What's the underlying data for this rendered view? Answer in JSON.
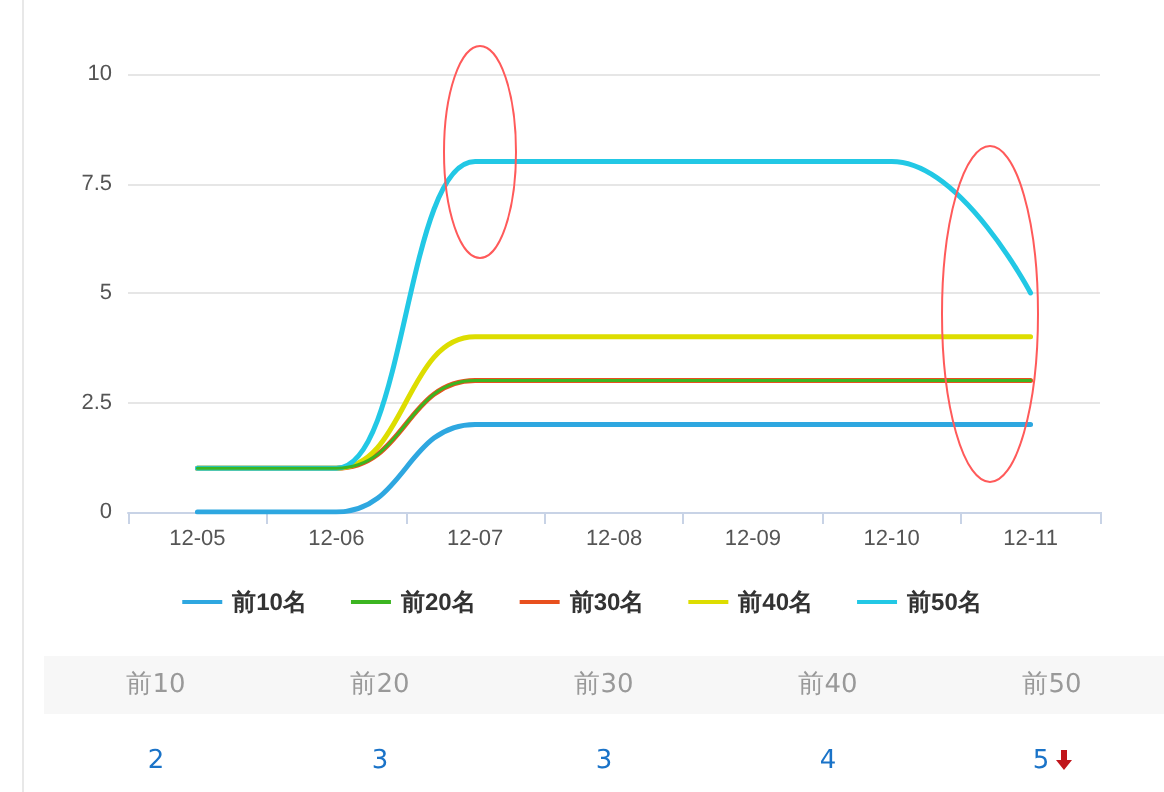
{
  "chart_data": {
    "type": "line",
    "categories": [
      "12-05",
      "12-06",
      "12-07",
      "12-08",
      "12-09",
      "12-10",
      "12-11"
    ],
    "series": [
      {
        "name": "前10名",
        "color": "#2ea7e0",
        "values": [
          0,
          0,
          2,
          2,
          2,
          2,
          2
        ]
      },
      {
        "name": "前20名",
        "color": "#3cb521",
        "values": [
          1,
          1,
          3,
          3,
          3,
          3,
          3
        ]
      },
      {
        "name": "前30名",
        "color": "#e8501e",
        "values": [
          1,
          1,
          3,
          3,
          3,
          3,
          3
        ]
      },
      {
        "name": "前40名",
        "color": "#dddd00",
        "values": [
          1,
          1,
          4,
          4,
          4,
          4,
          4
        ]
      },
      {
        "name": "前50名",
        "color": "#22c8e5",
        "values": [
          1,
          1,
          8,
          8,
          8,
          8,
          5
        ]
      }
    ],
    "annotations": [
      "前10",
      "前20",
      "前30",
      "前40",
      "前50",
      "2",
      "3",
      "3",
      "4",
      "5"
    ],
    "ylim": [
      0,
      10
    ],
    "yticks": [
      0,
      2.5,
      5,
      7.5,
      10
    ],
    "grid": "y",
    "legend": "bottom",
    "marker": "none",
    "line_style": "solid"
  }
}
